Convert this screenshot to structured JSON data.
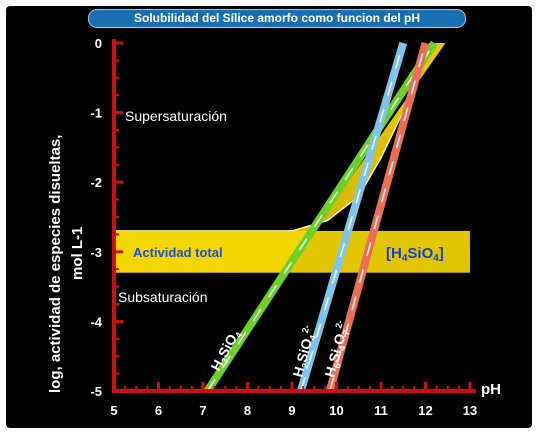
{
  "title": "Solubilidad del Sílice amorfo como funcion del pH",
  "chart_data": {
    "type": "line",
    "xlabel": "pH",
    "ylabel": "log, actividad de especies disueltas,",
    "ylabel2": "mol L-1",
    "xlim": [
      5,
      13
    ],
    "ylim": [
      -5,
      0
    ],
    "x_ticks": [
      "5",
      "6",
      "7",
      "8",
      "9",
      "10",
      "11",
      "12",
      "13"
    ],
    "y_ticks": [
      "0",
      "-1",
      "-2",
      "-3",
      "-4",
      "-5"
    ],
    "regions": {
      "upper": "Supersaturación",
      "lower": "Subsaturación"
    },
    "band": {
      "label": "Actividad total",
      "species": "[H4SiO4]",
      "range": [
        -3.3,
        -2.7
      ]
    },
    "series": [
      {
        "name": "H3SiO4",
        "label": "H3SiO4",
        "color": "#6fcf2a",
        "x": [
          7.1,
          12.2
        ],
        "y": [
          -5.0,
          0.0
        ]
      },
      {
        "name": "H2SiO4 2-",
        "label": "H2SiO42-",
        "color": "#7fc4e8",
        "x": [
          9.2,
          11.5
        ],
        "y": [
          -5.0,
          0.0
        ]
      },
      {
        "name": "H6Si4O7 2-",
        "label": "H6Si4O72-",
        "color": "#e8705a",
        "x": [
          9.85,
          12.0
        ],
        "y": [
          -5.0,
          0.0
        ]
      }
    ],
    "total_curve": {
      "x": [
        5,
        9.0,
        9.8,
        10.5,
        11.0,
        11.6,
        12.1
      ],
      "y": [
        -2.7,
        -2.7,
        -2.55,
        -2.2,
        -1.65,
        -0.85,
        0.0
      ]
    }
  },
  "colors": {
    "axis": "#cc1010",
    "band": "#f5d800",
    "panel": "#000000",
    "title_bg": "#1a6fb0"
  }
}
